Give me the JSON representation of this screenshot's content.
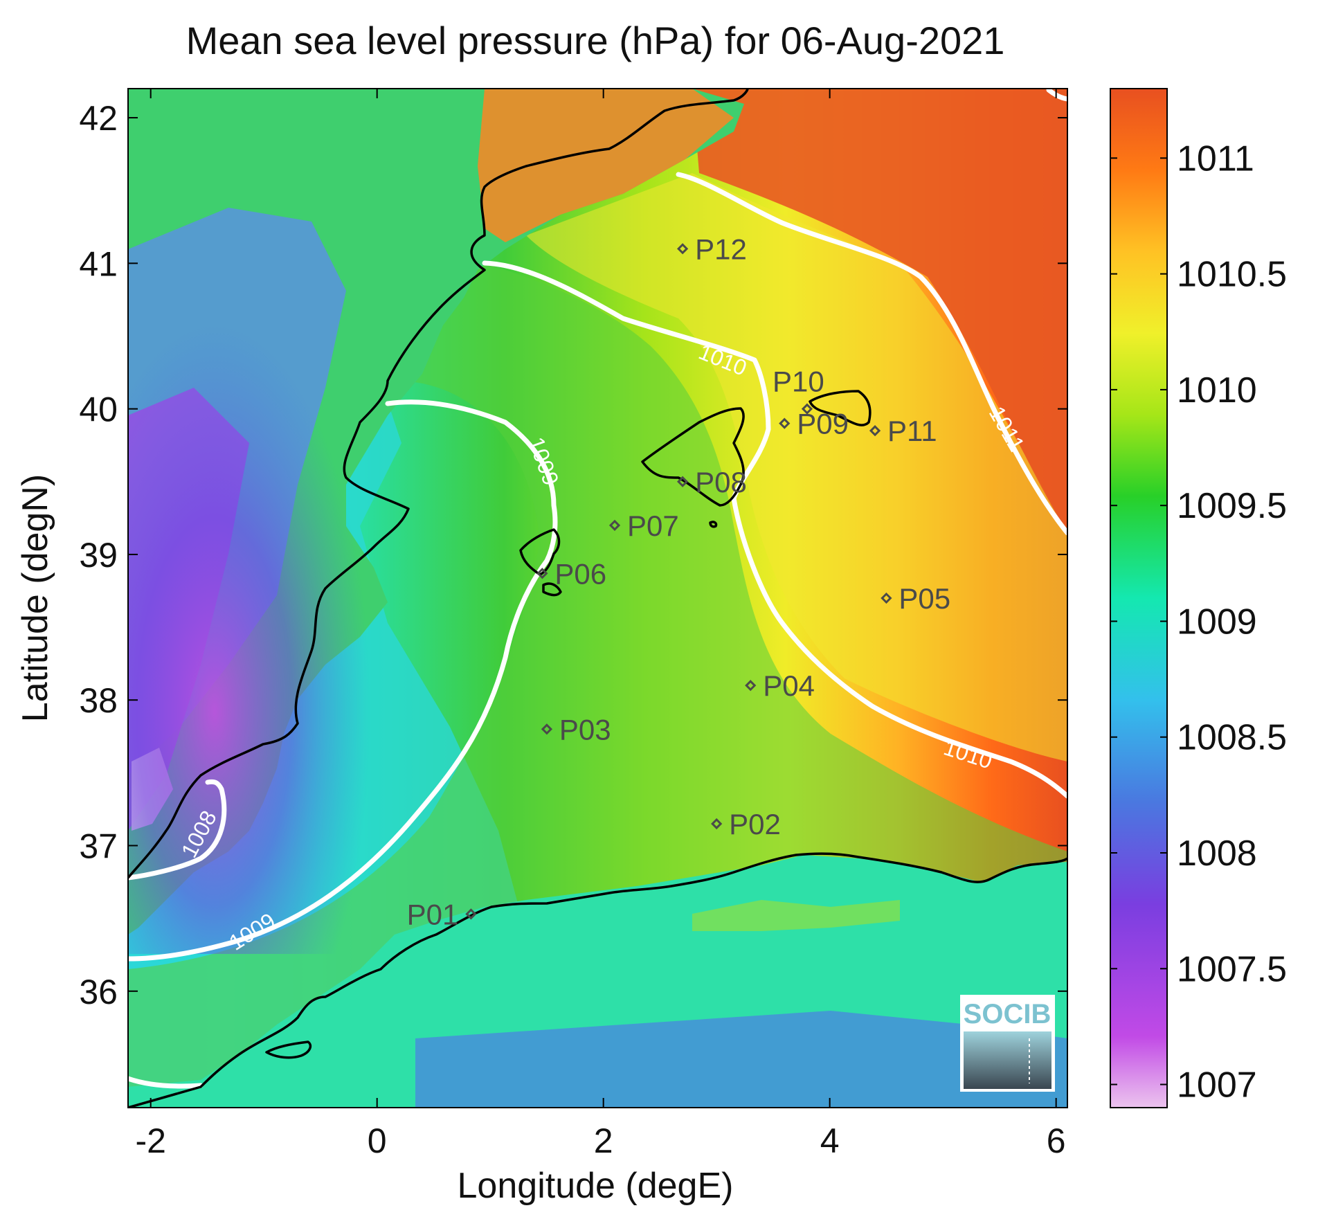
{
  "title": "Mean sea level pressure (hPa) for 06-Aug-2021",
  "xlabel": "Longitude (degE)",
  "ylabel": "Latitude (degN)",
  "x_ticks": [
    "-2",
    "0",
    "2",
    "4",
    "6"
  ],
  "y_ticks": [
    "42",
    "41",
    "40",
    "39",
    "38",
    "37",
    "36"
  ],
  "colorbar": {
    "ticks": [
      "1011",
      "1010.5",
      "1010",
      "1009.5",
      "1009",
      "1008.5",
      "1008",
      "1007.5",
      "1007"
    ],
    "colors": [
      "#e8b8ec",
      "#c14ae6",
      "#7a3ee0",
      "#4a78e0",
      "#33c0ec",
      "#14e8b0",
      "#28d028",
      "#a6e618",
      "#f0f02a",
      "#ffc224",
      "#ff7a14",
      "#e85020"
    ]
  },
  "contour_labels": {
    "c1010a": "1010",
    "c1010b": "1010",
    "c1011": "1011",
    "c1009a": "1009",
    "c1009b": "1009",
    "c1008": "1008"
  },
  "logo_text": "SOCIB",
  "chart_data": {
    "type": "heatmap",
    "title": "Mean sea level pressure (hPa) for 06-Aug-2021",
    "xlabel": "Longitude (degE)",
    "ylabel": "Latitude (degN)",
    "xlim": [
      -2.2,
      6.1
    ],
    "ylim": [
      35.2,
      42.2
    ],
    "colorbar_range": [
      1006.9,
      1011.3
    ],
    "contour_levels": [
      1008,
      1009,
      1010,
      1011
    ],
    "stations": [
      {
        "name": "P01",
        "lon": 0.83,
        "lat": 36.53
      },
      {
        "name": "P02",
        "lon": 3.0,
        "lat": 37.15
      },
      {
        "name": "P03",
        "lon": 1.5,
        "lat": 37.8
      },
      {
        "name": "P04",
        "lon": 3.3,
        "lat": 38.1
      },
      {
        "name": "P05",
        "lon": 4.5,
        "lat": 38.7
      },
      {
        "name": "P06",
        "lon": 1.46,
        "lat": 38.87
      },
      {
        "name": "P07",
        "lon": 2.1,
        "lat": 39.2
      },
      {
        "name": "P08",
        "lon": 2.7,
        "lat": 39.5
      },
      {
        "name": "P09",
        "lon": 3.6,
        "lat": 39.9
      },
      {
        "name": "P10",
        "lon": 3.8,
        "lat": 40.0
      },
      {
        "name": "P11",
        "lon": 4.4,
        "lat": 39.85
      },
      {
        "name": "P12",
        "lon": 2.7,
        "lat": 41.1
      }
    ]
  }
}
